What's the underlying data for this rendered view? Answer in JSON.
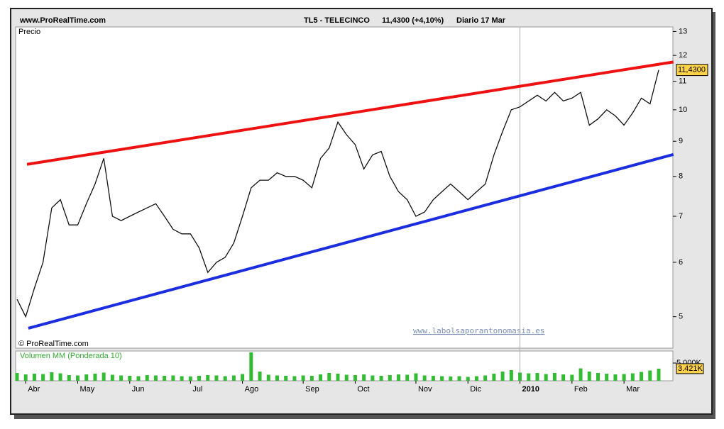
{
  "header": {
    "site": "www.ProRealTime.com",
    "instrument": "TL5 - TELECINCO",
    "quote": "11,4300 (+4,10%)",
    "period": "Diario  17 Mar"
  },
  "chart_data": [
    {
      "type": "line",
      "axis_label": "Precio",
      "copyright": "© ProRealTime.com",
      "watermark": "www.labolsaporantonomasia.es",
      "log_scale": true,
      "ylim": [
        4.5,
        13.2
      ],
      "yticks": [
        5,
        6,
        7,
        8,
        9,
        10,
        11,
        12,
        13
      ],
      "series": [
        {
          "color": "#111111",
          "last_label": "11,4300",
          "values": [
            5.3,
            5.0,
            5.5,
            6.0,
            7.2,
            7.4,
            6.8,
            6.8,
            7.3,
            7.8,
            8.5,
            7.0,
            6.9,
            7.0,
            7.1,
            7.2,
            7.3,
            7.0,
            6.7,
            6.6,
            6.6,
            6.3,
            5.8,
            6.0,
            6.1,
            6.4,
            7.0,
            7.7,
            7.9,
            7.9,
            8.1,
            8.0,
            8.0,
            7.9,
            7.7,
            8.5,
            8.8,
            9.6,
            9.2,
            8.9,
            8.2,
            8.6,
            8.7,
            8.0,
            7.6,
            7.4,
            7.0,
            7.1,
            7.4,
            7.6,
            7.8,
            7.6,
            7.4,
            7.6,
            7.8,
            8.6,
            9.3,
            10.0,
            10.1,
            10.3,
            10.5,
            10.3,
            10.6,
            10.3,
            10.4,
            10.6,
            9.5,
            9.7,
            10.0,
            9.8,
            9.5,
            9.9,
            10.4,
            10.2,
            11.43
          ]
        }
      ],
      "trendlines": [
        {
          "color": "#ee1111",
          "start": [
            1.15,
            8.33
          ],
          "end": [
            75.7,
            11.74
          ]
        },
        {
          "color": "#1a2ee0",
          "start": [
            1.3,
            4.81
          ],
          "end": [
            75.7,
            8.61
          ]
        }
      ]
    },
    {
      "type": "bar",
      "title": "Volumen MM (Ponderada 10)",
      "color": "#33bb33",
      "ylim": [
        0,
        8400
      ],
      "yticks": [
        {
          "value": 5000,
          "label": "5.000K"
        }
      ],
      "last_label": "3.421K",
      "categories": [
        null,
        "Abr",
        null,
        null,
        null,
        null,
        null,
        "May",
        null,
        null,
        null,
        null,
        null,
        "Jun",
        null,
        null,
        null,
        null,
        null,
        null,
        "Jul",
        null,
        null,
        null,
        null,
        null,
        "Ago",
        null,
        null,
        null,
        null,
        null,
        null,
        "Sep",
        null,
        null,
        null,
        null,
        null,
        "Oct",
        null,
        null,
        null,
        null,
        null,
        null,
        "Nov",
        null,
        null,
        null,
        null,
        null,
        "Dic",
        null,
        null,
        null,
        null,
        null,
        "2010",
        null,
        null,
        null,
        null,
        null,
        "Feb",
        null,
        null,
        null,
        null,
        null,
        "Mar",
        null,
        null,
        null,
        null
      ],
      "values": [
        2200,
        1800,
        2000,
        1900,
        2400,
        2100,
        1600,
        1500,
        1800,
        2000,
        2300,
        1700,
        1500,
        1400,
        1300,
        1600,
        1500,
        1400,
        1500,
        1300,
        1200,
        1400,
        1600,
        1500,
        1300,
        1500,
        1900,
        8000,
        2600,
        1700,
        1500,
        1400,
        1300,
        1500,
        1400,
        1800,
        2200,
        2000,
        1700,
        1600,
        1800,
        1500,
        1400,
        1600,
        1800,
        1700,
        2100,
        1500,
        1400,
        1300,
        1200,
        1300,
        1100,
        1300,
        1500,
        2000,
        2600,
        3000,
        2300,
        2100,
        2200,
        1900,
        2200,
        1800,
        1700,
        3500,
        2600,
        2200,
        2000,
        1800,
        1900,
        2100,
        2500,
        2900,
        3421
      ]
    }
  ]
}
